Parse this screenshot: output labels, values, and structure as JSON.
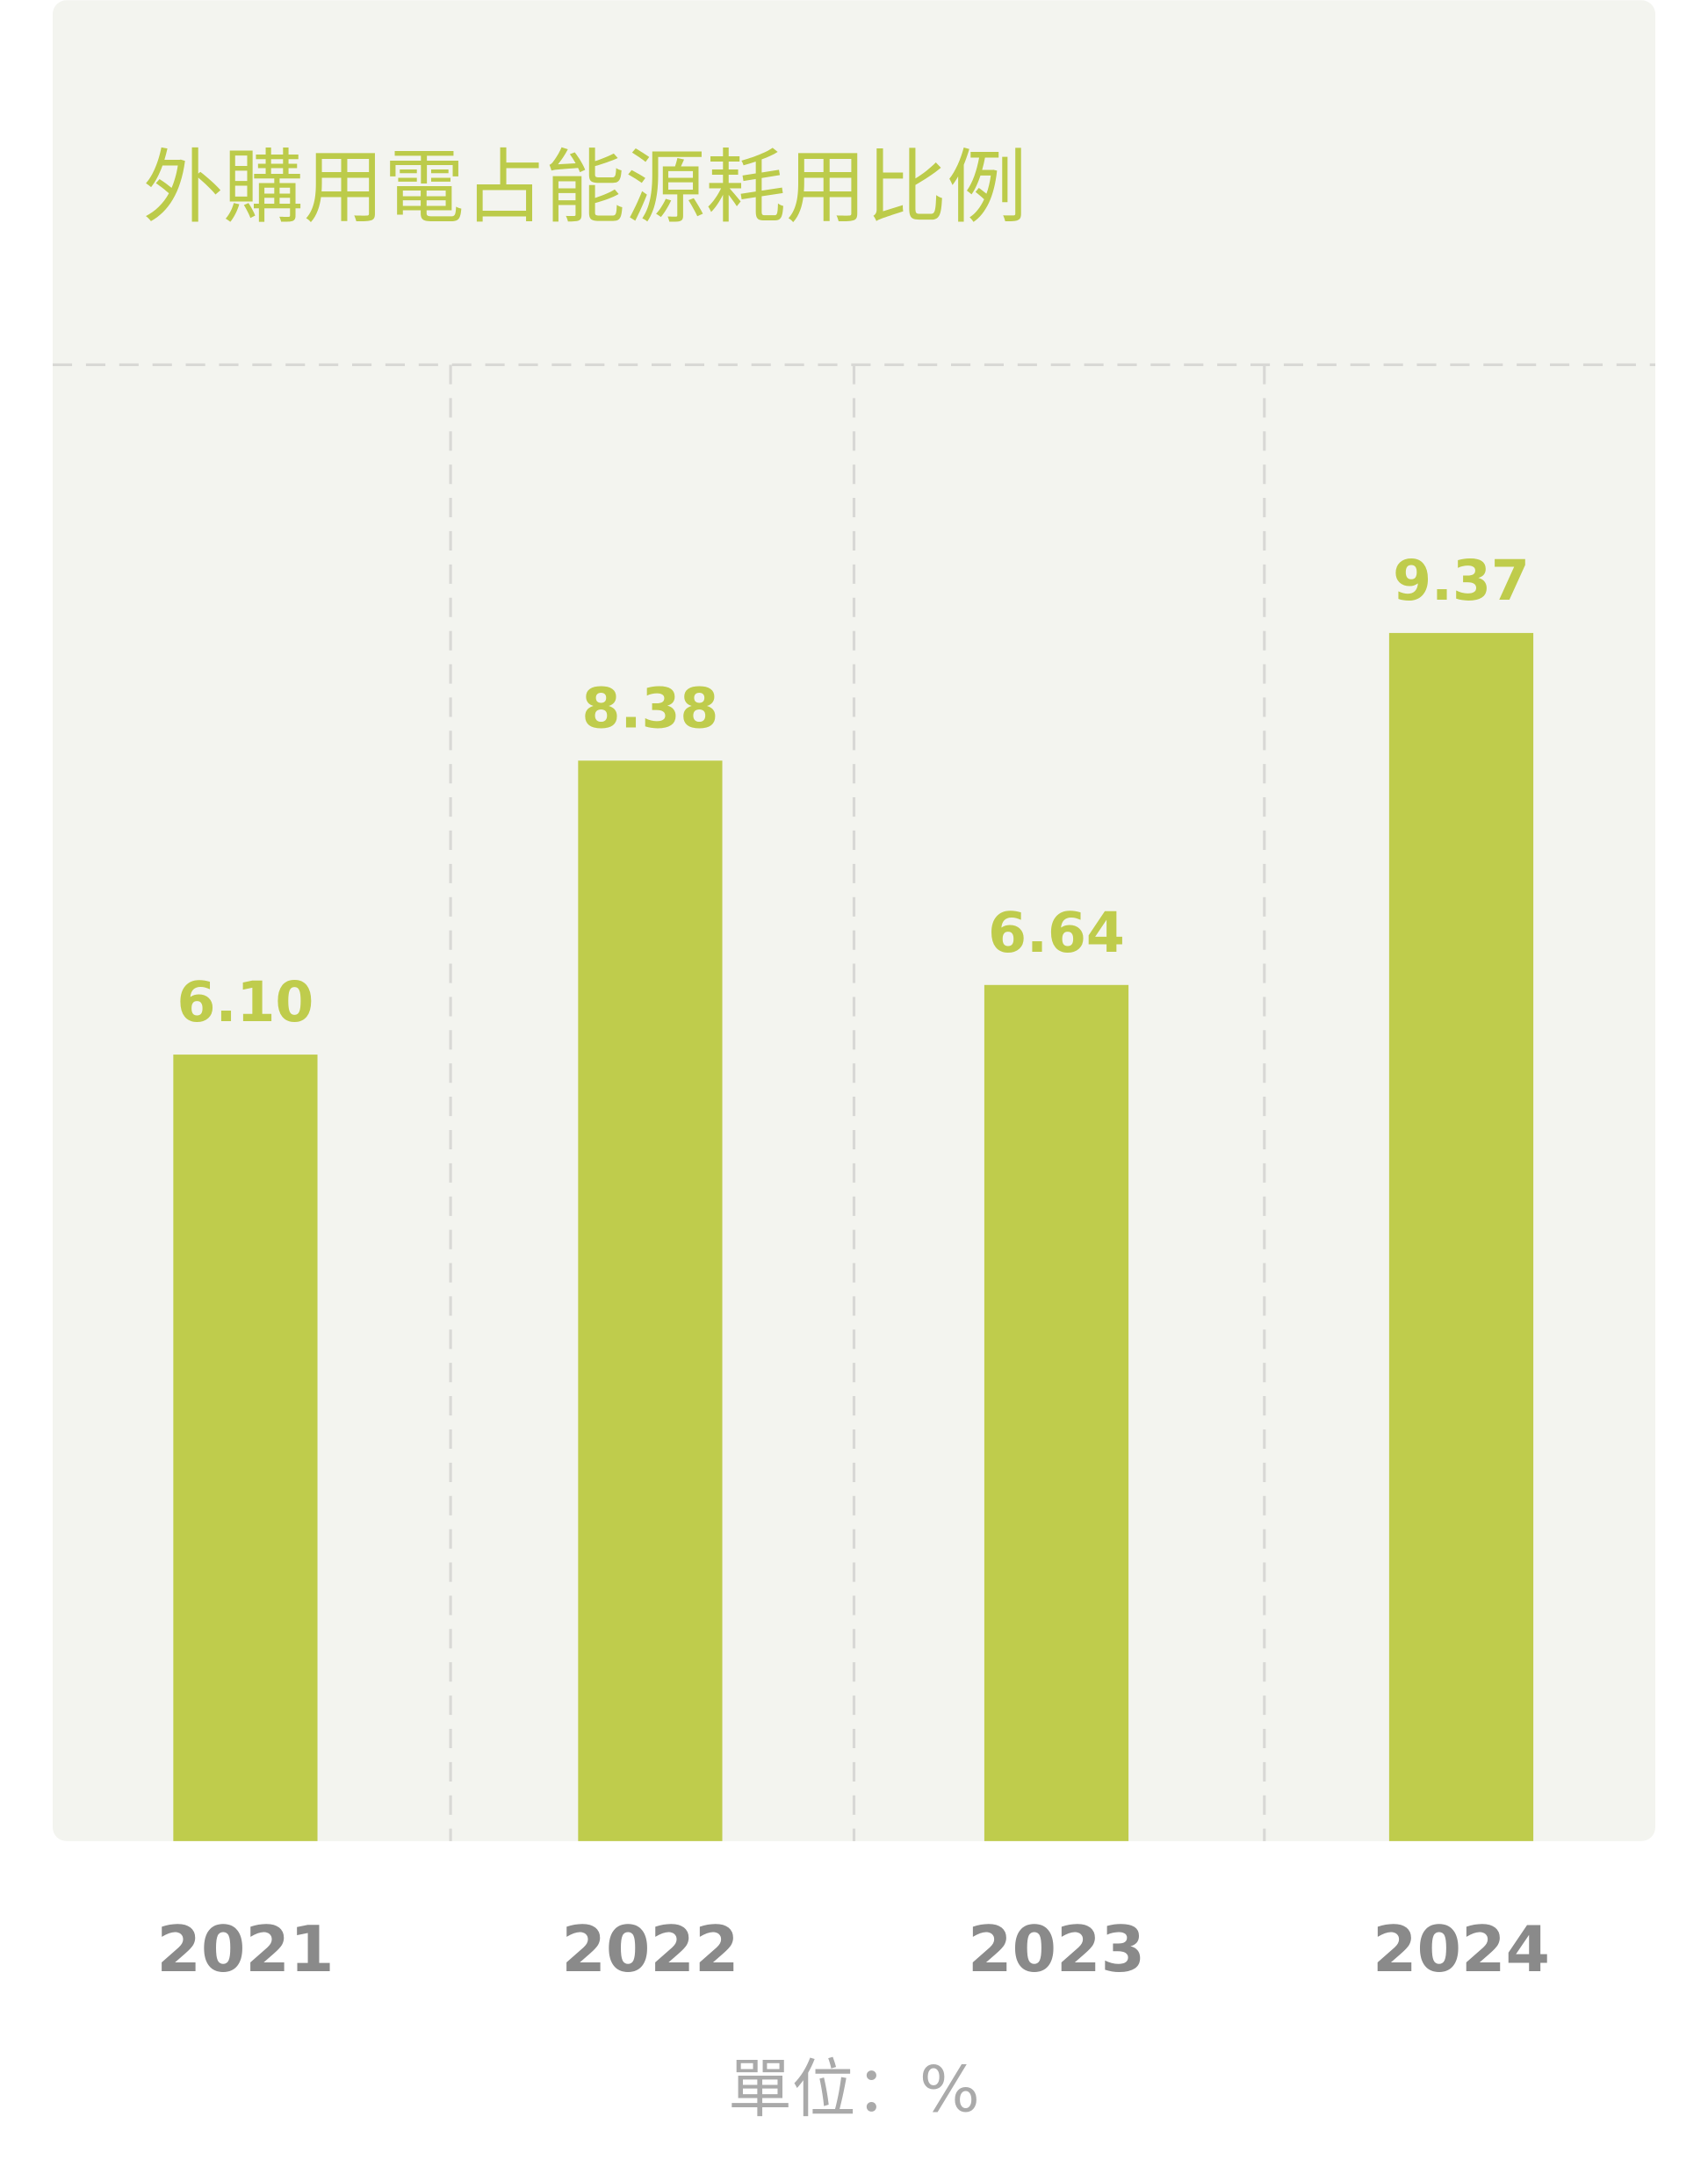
{
  "chart_data": {
    "type": "bar",
    "title": "外購用電占能源耗用比例",
    "unit_label": "單位：%",
    "categories": [
      "2021",
      "2022",
      "2023",
      "2024"
    ],
    "values": [
      6.1,
      8.38,
      6.64,
      9.37
    ],
    "value_labels": [
      "6.10",
      "8.38",
      "6.64",
      "9.37"
    ],
    "color": "#bfcc4c",
    "ylim": [
      0,
      11.45
    ]
  }
}
